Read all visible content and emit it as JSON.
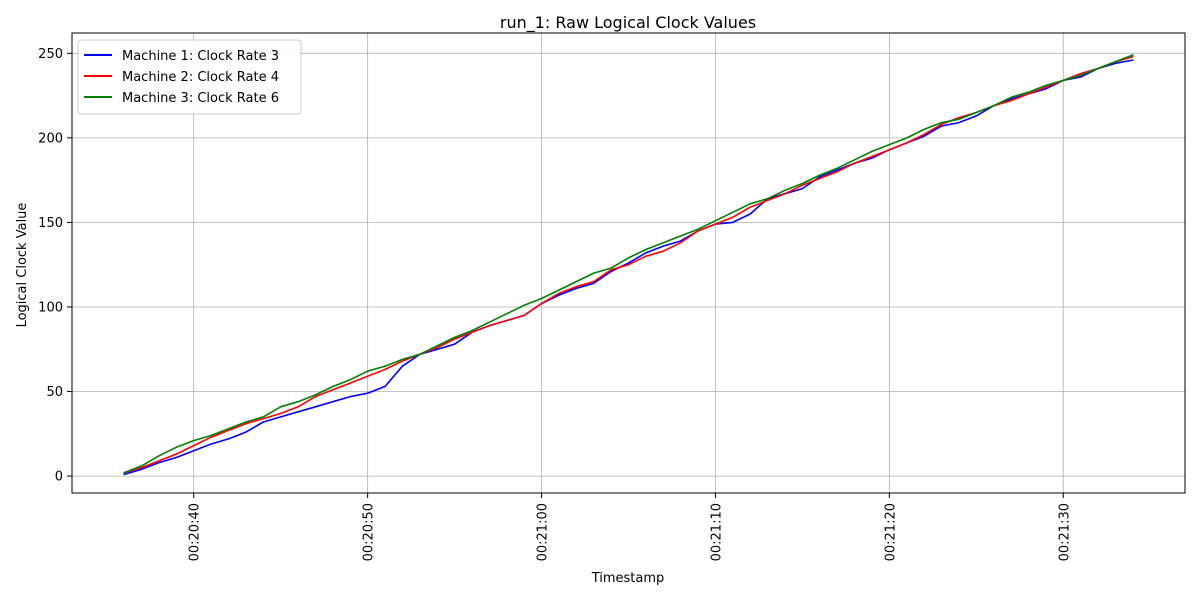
{
  "chart_data": {
    "type": "line",
    "title": "run_1: Raw Logical Clock Values",
    "xlabel": "Timestamp",
    "ylabel": "Logical Clock Value",
    "x_ticks": [
      "00:20:40",
      "00:20:50",
      "00:21:00",
      "00:21:10",
      "00:21:20",
      "00:21:30"
    ],
    "y_ticks": [
      0,
      50,
      100,
      150,
      200,
      250
    ],
    "xlim": [
      "00:20:33",
      "00:21:37"
    ],
    "ylim": [
      -10,
      262
    ],
    "grid": true,
    "legend_position": "top-left",
    "series": [
      {
        "name": "Machine 1: Clock Rate 3",
        "color": "#0000ff",
        "points": [
          [
            "00:20:36",
            1
          ],
          [
            "00:20:37",
            4
          ],
          [
            "00:20:38",
            8
          ],
          [
            "00:20:39",
            11
          ],
          [
            "00:20:40",
            15
          ],
          [
            "00:20:41",
            19
          ],
          [
            "00:20:42",
            22
          ],
          [
            "00:20:43",
            26
          ],
          [
            "00:20:44",
            32
          ],
          [
            "00:20:45",
            35
          ],
          [
            "00:20:46",
            38
          ],
          [
            "00:20:47",
            41
          ],
          [
            "00:20:48",
            44
          ],
          [
            "00:20:49",
            47
          ],
          [
            "00:20:50",
            49
          ],
          [
            "00:20:51",
            53
          ],
          [
            "00:20:52",
            65
          ],
          [
            "00:20:53",
            72
          ],
          [
            "00:20:54",
            75
          ],
          [
            "00:20:55",
            78
          ],
          [
            "00:20:56",
            85
          ],
          [
            "00:20:57",
            89
          ],
          [
            "00:20:58",
            92
          ],
          [
            "00:20:59",
            95
          ],
          [
            "00:21:00",
            102
          ],
          [
            "00:21:01",
            107
          ],
          [
            "00:21:02",
            111
          ],
          [
            "00:21:03",
            114
          ],
          [
            "00:21:04",
            121
          ],
          [
            "00:21:05",
            126
          ],
          [
            "00:21:06",
            132
          ],
          [
            "00:21:07",
            136
          ],
          [
            "00:21:08",
            139
          ],
          [
            "00:21:09",
            145
          ],
          [
            "00:21:10",
            149
          ],
          [
            "00:21:11",
            150
          ],
          [
            "00:21:12",
            155
          ],
          [
            "00:21:13",
            164
          ],
          [
            "00:21:14",
            167
          ],
          [
            "00:21:15",
            170
          ],
          [
            "00:21:16",
            177
          ],
          [
            "00:21:17",
            181
          ],
          [
            "00:21:18",
            185
          ],
          [
            "00:21:19",
            188
          ],
          [
            "00:21:20",
            193
          ],
          [
            "00:21:21",
            197
          ],
          [
            "00:21:22",
            201
          ],
          [
            "00:21:23",
            207
          ],
          [
            "00:21:24",
            209
          ],
          [
            "00:21:25",
            213
          ],
          [
            "00:21:26",
            219
          ],
          [
            "00:21:27",
            223
          ],
          [
            "00:21:28",
            226
          ],
          [
            "00:21:29",
            229
          ],
          [
            "00:21:30",
            234
          ],
          [
            "00:21:31",
            236
          ],
          [
            "00:21:32",
            241
          ],
          [
            "00:21:33",
            244
          ],
          [
            "00:21:34",
            246
          ]
        ]
      },
      {
        "name": "Machine 2: Clock Rate 4",
        "color": "#ff0000",
        "points": [
          [
            "00:20:36",
            2
          ],
          [
            "00:20:37",
            5
          ],
          [
            "00:20:38",
            9
          ],
          [
            "00:20:39",
            13
          ],
          [
            "00:20:40",
            18
          ],
          [
            "00:20:41",
            23
          ],
          [
            "00:20:42",
            27
          ],
          [
            "00:20:43",
            31
          ],
          [
            "00:20:44",
            34
          ],
          [
            "00:20:45",
            37
          ],
          [
            "00:20:46",
            41
          ],
          [
            "00:20:47",
            47
          ],
          [
            "00:20:48",
            51
          ],
          [
            "00:20:49",
            55
          ],
          [
            "00:20:50",
            59
          ],
          [
            "00:20:51",
            63
          ],
          [
            "00:20:52",
            68
          ],
          [
            "00:20:53",
            72
          ],
          [
            "00:20:54",
            76
          ],
          [
            "00:20:55",
            81
          ],
          [
            "00:20:56",
            85
          ],
          [
            "00:20:57",
            89
          ],
          [
            "00:20:58",
            92
          ],
          [
            "00:20:59",
            95
          ],
          [
            "00:21:00",
            102
          ],
          [
            "00:21:01",
            108
          ],
          [
            "00:21:02",
            112
          ],
          [
            "00:21:03",
            115
          ],
          [
            "00:21:04",
            122
          ],
          [
            "00:21:05",
            125
          ],
          [
            "00:21:06",
            130
          ],
          [
            "00:21:07",
            133
          ],
          [
            "00:21:08",
            138
          ],
          [
            "00:21:09",
            145
          ],
          [
            "00:21:10",
            149
          ],
          [
            "00:21:11",
            153
          ],
          [
            "00:21:12",
            159
          ],
          [
            "00:21:13",
            163
          ],
          [
            "00:21:14",
            167
          ],
          [
            "00:21:15",
            172
          ],
          [
            "00:21:16",
            176
          ],
          [
            "00:21:17",
            180
          ],
          [
            "00:21:18",
            185
          ],
          [
            "00:21:19",
            189
          ],
          [
            "00:21:20",
            193
          ],
          [
            "00:21:21",
            197
          ],
          [
            "00:21:22",
            202
          ],
          [
            "00:21:23",
            208
          ],
          [
            "00:21:24",
            212
          ],
          [
            "00:21:25",
            215
          ],
          [
            "00:21:26",
            219
          ],
          [
            "00:21:27",
            222
          ],
          [
            "00:21:28",
            226
          ],
          [
            "00:21:29",
            230
          ],
          [
            "00:21:30",
            234
          ],
          [
            "00:21:31",
            238
          ],
          [
            "00:21:32",
            241
          ],
          [
            "00:21:33",
            245
          ],
          [
            "00:21:34",
            248
          ]
        ]
      },
      {
        "name": "Machine 3: Clock Rate 6",
        "color": "#008000",
        "points": [
          [
            "00:20:36",
            2
          ],
          [
            "00:20:37",
            6
          ],
          [
            "00:20:38",
            12
          ],
          [
            "00:20:39",
            17
          ],
          [
            "00:20:40",
            21
          ],
          [
            "00:20:41",
            24
          ],
          [
            "00:20:42",
            28
          ],
          [
            "00:20:43",
            32
          ],
          [
            "00:20:44",
            35
          ],
          [
            "00:20:45",
            41
          ],
          [
            "00:20:46",
            44
          ],
          [
            "00:20:47",
            48
          ],
          [
            "00:20:48",
            53
          ],
          [
            "00:20:49",
            57
          ],
          [
            "00:20:50",
            62
          ],
          [
            "00:20:51",
            65
          ],
          [
            "00:20:52",
            69
          ],
          [
            "00:20:53",
            72
          ],
          [
            "00:20:54",
            77
          ],
          [
            "00:20:55",
            82
          ],
          [
            "00:20:56",
            86
          ],
          [
            "00:20:57",
            91
          ],
          [
            "00:20:58",
            96
          ],
          [
            "00:20:59",
            101
          ],
          [
            "00:21:00",
            105
          ],
          [
            "00:21:01",
            110
          ],
          [
            "00:21:02",
            115
          ],
          [
            "00:21:03",
            120
          ],
          [
            "00:21:04",
            123
          ],
          [
            "00:21:05",
            129
          ],
          [
            "00:21:06",
            134
          ],
          [
            "00:21:07",
            138
          ],
          [
            "00:21:08",
            142
          ],
          [
            "00:21:09",
            146
          ],
          [
            "00:21:10",
            151
          ],
          [
            "00:21:11",
            156
          ],
          [
            "00:21:12",
            161
          ],
          [
            "00:21:13",
            164
          ],
          [
            "00:21:14",
            169
          ],
          [
            "00:21:15",
            173
          ],
          [
            "00:21:16",
            178
          ],
          [
            "00:21:17",
            182
          ],
          [
            "00:21:18",
            187
          ],
          [
            "00:21:19",
            192
          ],
          [
            "00:21:20",
            196
          ],
          [
            "00:21:21",
            200
          ],
          [
            "00:21:22",
            205
          ],
          [
            "00:21:23",
            209
          ],
          [
            "00:21:24",
            211
          ],
          [
            "00:21:25",
            215
          ],
          [
            "00:21:26",
            219
          ],
          [
            "00:21:27",
            224
          ],
          [
            "00:21:28",
            227
          ],
          [
            "00:21:29",
            231
          ],
          [
            "00:21:30",
            234
          ],
          [
            "00:21:31",
            237
          ],
          [
            "00:21:32",
            241
          ],
          [
            "00:21:33",
            245
          ],
          [
            "00:21:34",
            249
          ]
        ]
      }
    ]
  }
}
